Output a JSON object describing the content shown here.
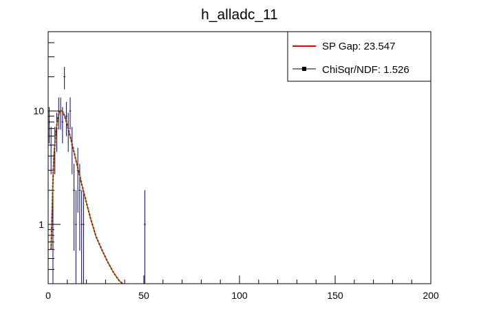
{
  "chart_data": {
    "type": "scatter",
    "title": "h_alladc_11",
    "xlabel": "",
    "ylabel": "",
    "xlim": [
      0,
      200
    ],
    "ylim": [
      0.3,
      50
    ],
    "ylog": true,
    "grid": false,
    "legend_position": "top-right",
    "x_ticks": [
      0,
      50,
      100,
      150,
      200
    ],
    "x_tick_labels": [
      "0",
      "50",
      "100",
      "150",
      "200"
    ],
    "y_ticks": [
      1,
      10
    ],
    "y_tick_labels": [
      "1",
      "10"
    ],
    "colors": {
      "data": "#00007a",
      "fit": "#e00000",
      "fit_components": "#00c000",
      "axes": "#000000"
    },
    "legend": [
      {
        "label": "SP Gap: 23.547",
        "style": "line",
        "color": "#e00000"
      },
      {
        "label": "ChiSqr/NDF: 1.526",
        "style": "marker",
        "color": "#000000"
      }
    ],
    "series": [
      {
        "kind": "data",
        "x": [
          0.5,
          1.5,
          2.5,
          3.5,
          4.5,
          5.5,
          6.5,
          7.5,
          8.5,
          9.5,
          10.5,
          11.5,
          12.5,
          13.5,
          14.5,
          15.5,
          16.5,
          17.5,
          18.5,
          50.5
        ],
        "y": [
          8,
          5,
          1,
          5,
          7,
          10,
          10,
          8,
          20,
          9,
          7,
          10,
          5,
          2,
          1,
          3,
          2,
          1,
          1,
          1
        ]
      },
      {
        "kind": "fit",
        "x": [
          1.5,
          2,
          2.5,
          3,
          4,
          5,
          6,
          7,
          8,
          9,
          10,
          12,
          14,
          16,
          18,
          20,
          22,
          25,
          28,
          31,
          34,
          37,
          39
        ],
        "y": [
          0.6,
          1.2,
          2.5,
          4,
          6.5,
          8.6,
          9.9,
          10.1,
          9.6,
          8.6,
          7.5,
          5.5,
          4,
          2.9,
          2.1,
          1.55,
          1.15,
          0.78,
          0.6,
          0.47,
          0.38,
          0.32,
          0.29
        ]
      }
    ]
  }
}
